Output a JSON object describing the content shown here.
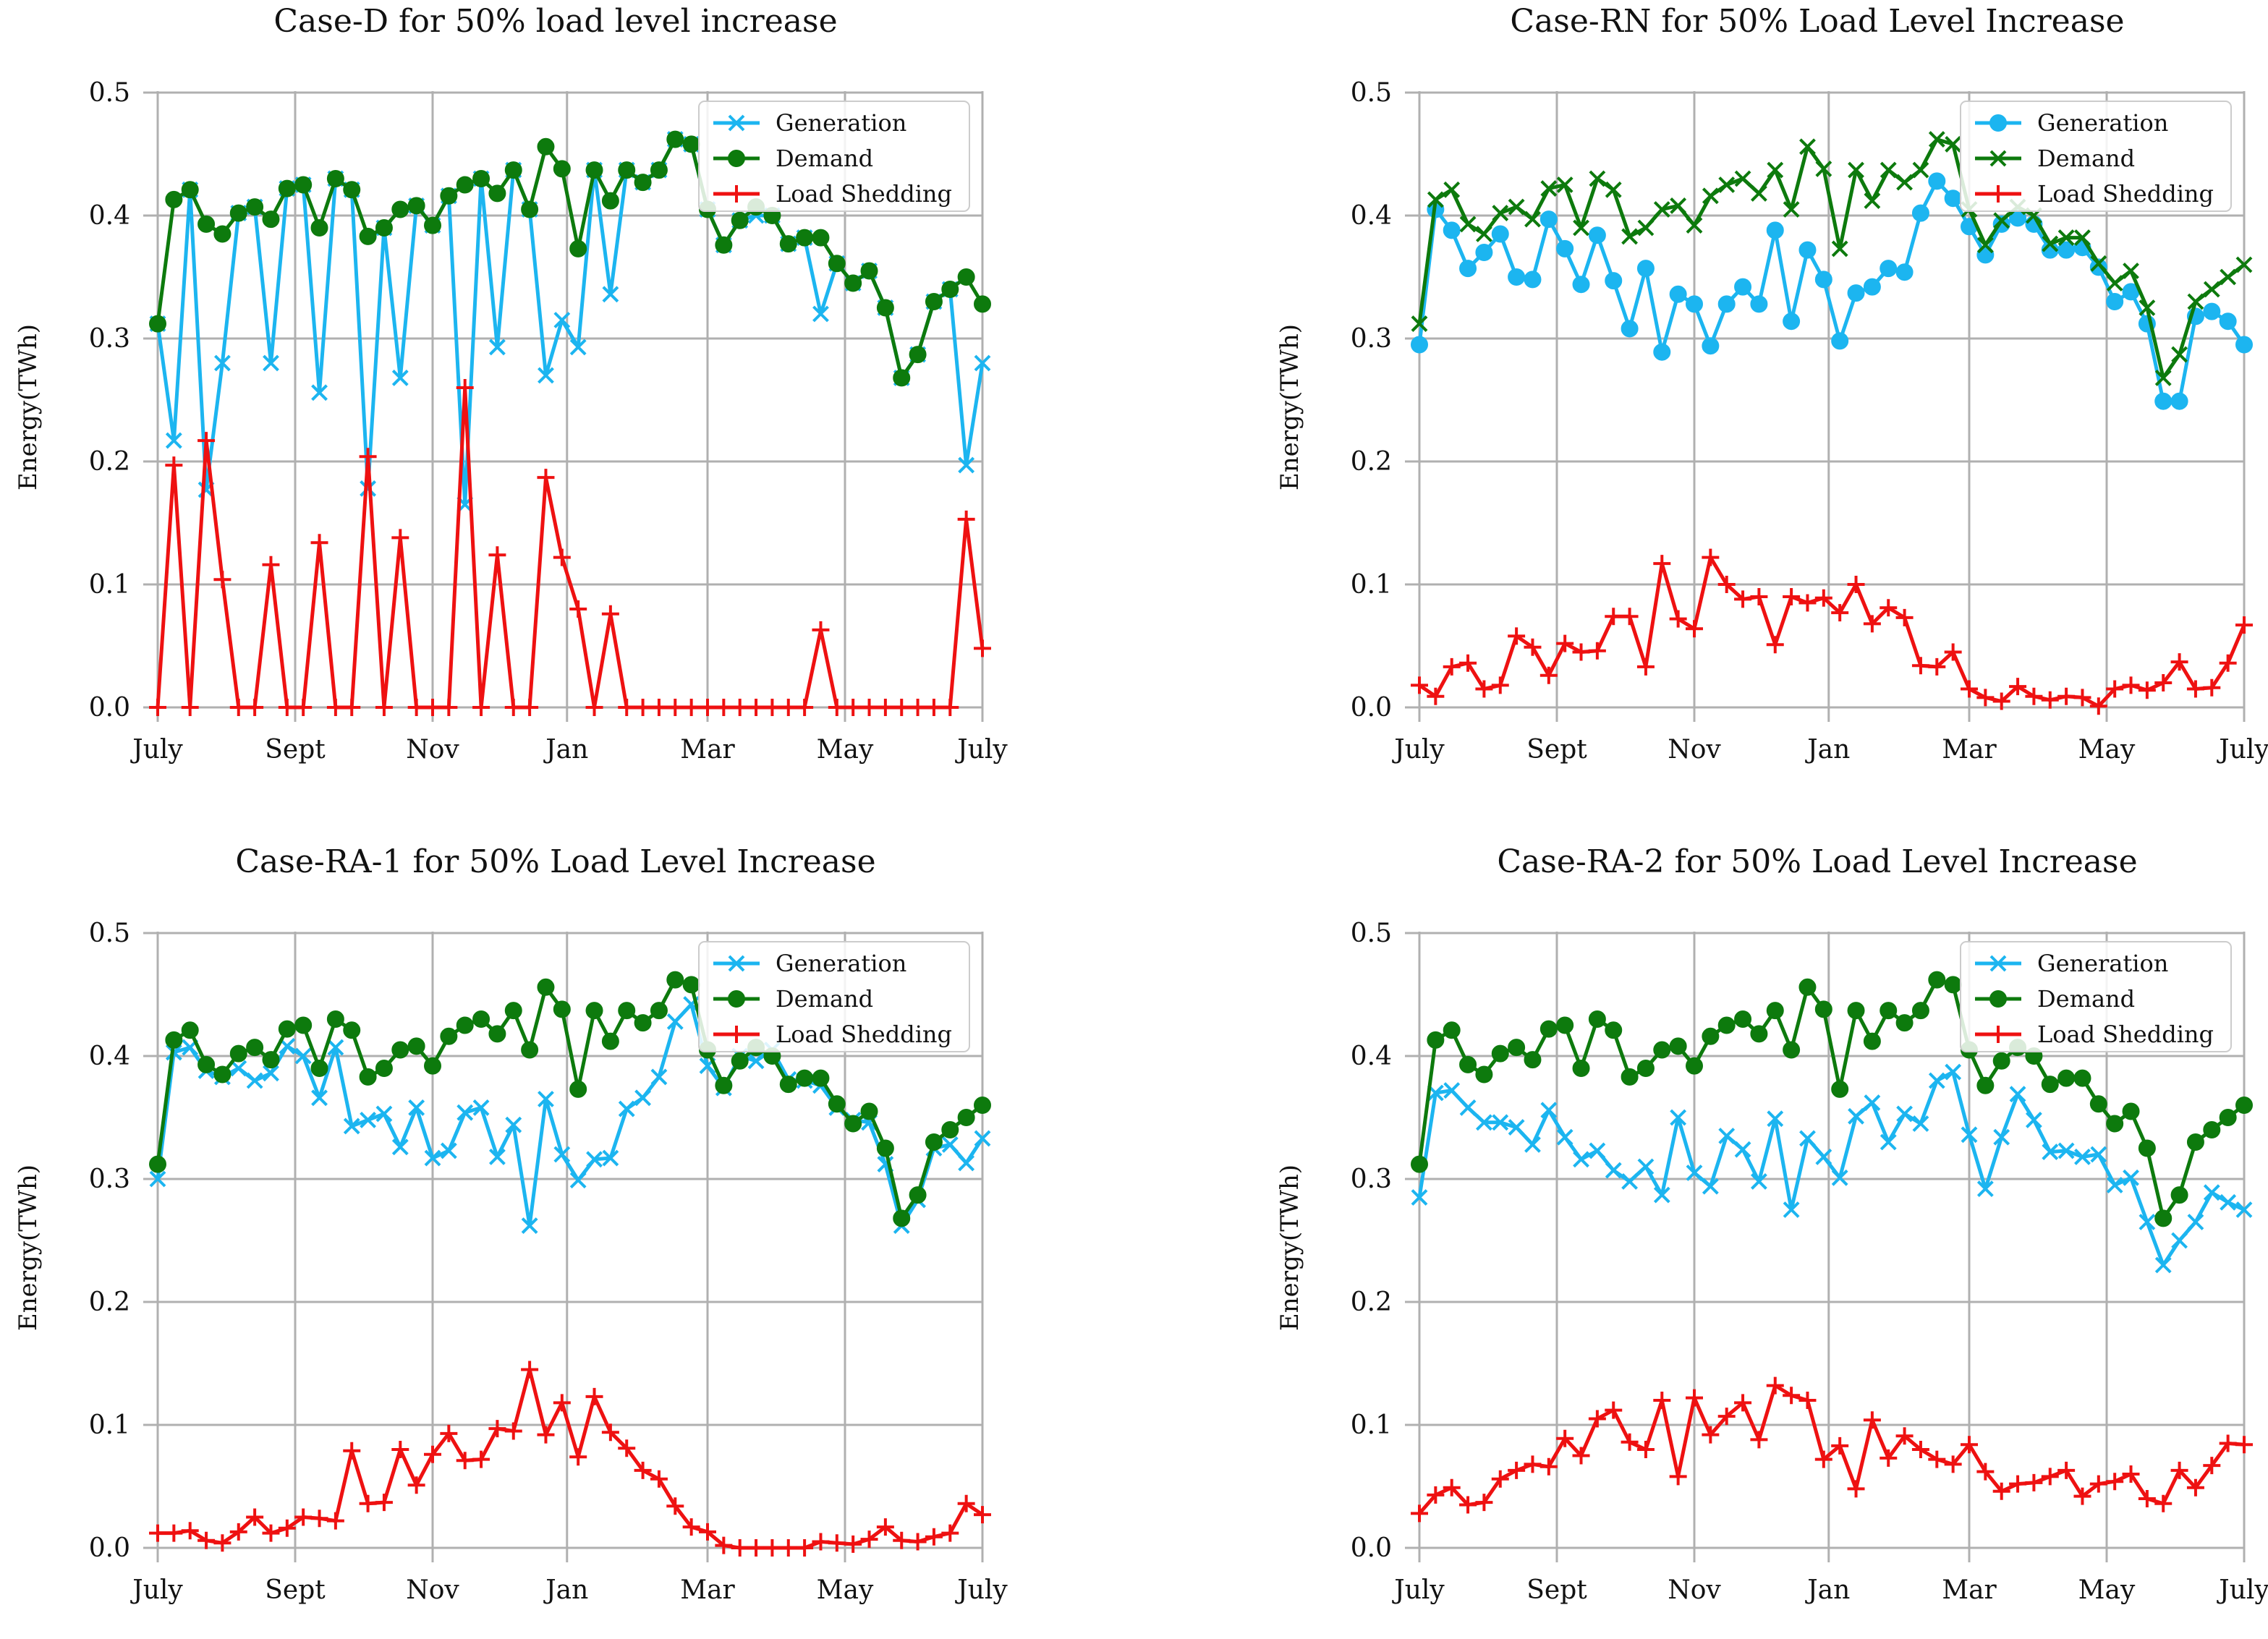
{
  "colors": {
    "generation": "#1cb5f0",
    "demand": "#0d7a0d",
    "shedding": "#ee1111",
    "grid": "#b0b0b0"
  },
  "chart_data": [
    {
      "type": "line",
      "title": "Case-D for 50% load level increase",
      "ylabel": "Energy(TWh)",
      "xlabel": "",
      "ylim": [
        0,
        0.5
      ],
      "yticks": [
        "0.0",
        "0.1",
        "0.2",
        "0.3",
        "0.4",
        "0.5"
      ],
      "xtick_labels": [
        "July",
        "Sept",
        "Nov",
        "Jan",
        "Mar",
        "May",
        "July"
      ],
      "x_range": [
        0,
        52
      ],
      "legend_position": "top-right",
      "series": [
        {
          "name": "Generation",
          "marker": "x",
          "color": "#1cb5f0",
          "values": [
            0.312,
            0.217,
            0.421,
            0.177,
            0.28,
            0.402,
            0.407,
            0.28,
            0.422,
            0.425,
            0.256,
            0.43,
            0.421,
            0.178,
            0.39,
            0.268,
            0.408,
            0.392,
            0.416,
            0.165,
            0.43,
            0.293,
            0.437,
            0.405,
            0.27,
            0.315,
            0.293,
            0.437,
            0.336,
            0.437,
            0.427,
            0.437,
            0.462,
            0.458,
            0.405,
            0.376,
            0.396,
            0.4,
            0.4,
            0.377,
            0.382,
            0.32,
            0.361,
            0.345,
            0.355,
            0.325,
            0.268,
            0.287,
            0.33,
            0.34,
            0.197,
            0.28
          ]
        },
        {
          "name": "Demand",
          "marker": "o",
          "color": "#0d7a0d",
          "values": [
            0.312,
            0.413,
            0.421,
            0.393,
            0.385,
            0.402,
            0.407,
            0.397,
            0.422,
            0.425,
            0.39,
            0.43,
            0.421,
            0.383,
            0.39,
            0.405,
            0.408,
            0.392,
            0.416,
            0.425,
            0.43,
            0.418,
            0.437,
            0.405,
            0.456,
            0.438,
            0.373,
            0.437,
            0.412,
            0.437,
            0.427,
            0.437,
            0.462,
            0.458,
            0.405,
            0.376,
            0.396,
            0.407,
            0.4,
            0.377,
            0.382,
            0.382,
            0.361,
            0.345,
            0.355,
            0.325,
            0.268,
            0.287,
            0.33,
            0.34,
            0.35,
            0.328
          ]
        },
        {
          "name": "Load Shedding",
          "marker": "+",
          "color": "#ee1111",
          "values": [
            0.0,
            0.197,
            0.0,
            0.217,
            0.104,
            0.0,
            0.0,
            0.116,
            0.0,
            0.0,
            0.134,
            0.0,
            0.0,
            0.204,
            0.0,
            0.138,
            0.0,
            0.0,
            0.0,
            0.26,
            0.0,
            0.124,
            0.0,
            0.0,
            0.187,
            0.122,
            0.08,
            0.0,
            0.076,
            0.0,
            0.0,
            0.0,
            0.0,
            0.0,
            0.0,
            0.0,
            0.0,
            0.0,
            0.0,
            0.0,
            0.0,
            0.063,
            0.0,
            0.0,
            0.0,
            0.0,
            0.0,
            0.0,
            0.0,
            0.0,
            0.153,
            0.048
          ]
        }
      ]
    },
    {
      "type": "line",
      "title": "Case-RN for 50% Load Level Increase",
      "ylabel": "Energy(TWh)",
      "xlabel": "",
      "ylim": [
        0,
        0.5
      ],
      "yticks": [
        "0.0",
        "0.1",
        "0.2",
        "0.3",
        "0.4",
        "0.5"
      ],
      "xtick_labels": [
        "July",
        "Sept",
        "Nov",
        "Jan",
        "Mar",
        "May",
        "July"
      ],
      "x_range": [
        0,
        52
      ],
      "legend_position": "top-right",
      "series": [
        {
          "name": "Generation",
          "marker": "o",
          "color": "#1cb5f0",
          "values": [
            0.295,
            0.405,
            0.388,
            0.357,
            0.37,
            0.385,
            0.35,
            0.348,
            0.397,
            0.373,
            0.344,
            0.384,
            0.347,
            0.308,
            0.357,
            0.289,
            0.336,
            0.328,
            0.294,
            0.328,
            0.342,
            0.328,
            0.388,
            0.314,
            0.372,
            0.348,
            0.298,
            0.337,
            0.342,
            0.357,
            0.354,
            0.402,
            0.428,
            0.414,
            0.391,
            0.368,
            0.393,
            0.398,
            0.393,
            0.372,
            0.372,
            0.374,
            0.358,
            0.33,
            0.338,
            0.312,
            0.249,
            0.249,
            0.318,
            0.322,
            0.314,
            0.295
          ]
        },
        {
          "name": "Demand",
          "marker": "x",
          "color": "#0d7a0d",
          "values": [
            0.312,
            0.413,
            0.421,
            0.393,
            0.385,
            0.402,
            0.407,
            0.397,
            0.422,
            0.425,
            0.39,
            0.43,
            0.421,
            0.383,
            0.39,
            0.405,
            0.408,
            0.392,
            0.416,
            0.425,
            0.43,
            0.418,
            0.437,
            0.405,
            0.456,
            0.438,
            0.373,
            0.437,
            0.412,
            0.437,
            0.427,
            0.437,
            0.462,
            0.458,
            0.405,
            0.376,
            0.396,
            0.407,
            0.4,
            0.377,
            0.382,
            0.382,
            0.361,
            0.345,
            0.355,
            0.325,
            0.268,
            0.287,
            0.33,
            0.34,
            0.35,
            0.36
          ]
        },
        {
          "name": "Load Shedding",
          "marker": "+",
          "color": "#ee1111",
          "values": [
            0.018,
            0.009,
            0.033,
            0.036,
            0.015,
            0.018,
            0.058,
            0.049,
            0.026,
            0.052,
            0.045,
            0.046,
            0.074,
            0.074,
            0.033,
            0.117,
            0.072,
            0.064,
            0.122,
            0.1,
            0.088,
            0.09,
            0.051,
            0.09,
            0.085,
            0.089,
            0.077,
            0.1,
            0.068,
            0.081,
            0.073,
            0.034,
            0.033,
            0.045,
            0.015,
            0.008,
            0.005,
            0.017,
            0.009,
            0.006,
            0.009,
            0.008,
            0.001,
            0.015,
            0.018,
            0.014,
            0.02,
            0.037,
            0.015,
            0.016,
            0.036,
            0.067
          ]
        }
      ]
    },
    {
      "type": "line",
      "title": "Case-RA-1 for 50% Load Level Increase",
      "ylabel": "Energy(TWh)",
      "xlabel": "",
      "ylim": [
        0,
        0.5
      ],
      "yticks": [
        "0.0",
        "0.1",
        "0.2",
        "0.3",
        "0.4",
        "0.5"
      ],
      "xtick_labels": [
        "July",
        "Sept",
        "Nov",
        "Jan",
        "Mar",
        "May",
        "July"
      ],
      "x_range": [
        0,
        52
      ],
      "legend_position": "top-right",
      "series": [
        {
          "name": "Generation",
          "marker": "x",
          "color": "#1cb5f0",
          "values": [
            0.3,
            0.403,
            0.407,
            0.388,
            0.383,
            0.39,
            0.38,
            0.386,
            0.408,
            0.4,
            0.366,
            0.407,
            0.343,
            0.348,
            0.353,
            0.326,
            0.358,
            0.317,
            0.323,
            0.354,
            0.358,
            0.318,
            0.344,
            0.262,
            0.365,
            0.32,
            0.299,
            0.316,
            0.317,
            0.357,
            0.366,
            0.383,
            0.428,
            0.442,
            0.392,
            0.374,
            0.4,
            0.396,
            0.405,
            0.381,
            0.38,
            0.376,
            0.358,
            0.348,
            0.346,
            0.312,
            0.262,
            0.283,
            0.325,
            0.328,
            0.313,
            0.333
          ]
        },
        {
          "name": "Demand",
          "marker": "o",
          "color": "#0d7a0d",
          "values": [
            0.312,
            0.413,
            0.421,
            0.393,
            0.385,
            0.402,
            0.407,
            0.397,
            0.422,
            0.425,
            0.39,
            0.43,
            0.421,
            0.383,
            0.39,
            0.405,
            0.408,
            0.392,
            0.416,
            0.425,
            0.43,
            0.418,
            0.437,
            0.405,
            0.456,
            0.438,
            0.373,
            0.437,
            0.412,
            0.437,
            0.427,
            0.437,
            0.462,
            0.458,
            0.405,
            0.376,
            0.396,
            0.407,
            0.4,
            0.377,
            0.382,
            0.382,
            0.361,
            0.345,
            0.355,
            0.325,
            0.268,
            0.287,
            0.33,
            0.34,
            0.35,
            0.36
          ]
        },
        {
          "name": "Load Shedding",
          "marker": "+",
          "color": "#ee1111",
          "values": [
            0.012,
            0.012,
            0.014,
            0.006,
            0.004,
            0.013,
            0.025,
            0.012,
            0.016,
            0.025,
            0.024,
            0.022,
            0.079,
            0.036,
            0.037,
            0.08,
            0.051,
            0.076,
            0.093,
            0.071,
            0.072,
            0.097,
            0.095,
            0.145,
            0.092,
            0.118,
            0.074,
            0.123,
            0.094,
            0.081,
            0.063,
            0.056,
            0.034,
            0.017,
            0.013,
            0.002,
            0.0,
            0.0,
            0.0,
            0.0,
            0.0,
            0.005,
            0.004,
            0.003,
            0.007,
            0.017,
            0.006,
            0.005,
            0.009,
            0.012,
            0.036,
            0.027
          ]
        }
      ]
    },
    {
      "type": "line",
      "title": "Case-RA-2 for 50% Load Level Increase",
      "ylabel": "Energy(TWh)",
      "xlabel": "",
      "ylim": [
        0,
        0.5
      ],
      "yticks": [
        "0.0",
        "0.1",
        "0.2",
        "0.3",
        "0.4",
        "0.5"
      ],
      "xtick_labels": [
        "July",
        "Sept",
        "Nov",
        "Jan",
        "Mar",
        "May",
        "July"
      ],
      "x_range": [
        0,
        52
      ],
      "legend_position": "top-right",
      "series": [
        {
          "name": "Generation",
          "marker": "x",
          "color": "#1cb5f0",
          "values": [
            0.285,
            0.37,
            0.372,
            0.358,
            0.346,
            0.346,
            0.342,
            0.328,
            0.356,
            0.334,
            0.316,
            0.323,
            0.307,
            0.298,
            0.31,
            0.287,
            0.35,
            0.305,
            0.294,
            0.335,
            0.324,
            0.298,
            0.349,
            0.275,
            0.333,
            0.318,
            0.301,
            0.351,
            0.362,
            0.33,
            0.353,
            0.345,
            0.38,
            0.387,
            0.336,
            0.292,
            0.334,
            0.369,
            0.348,
            0.322,
            0.323,
            0.318,
            0.32,
            0.295,
            0.301,
            0.265,
            0.23,
            0.25,
            0.265,
            0.289,
            0.281,
            0.275
          ]
        },
        {
          "name": "Demand",
          "marker": "o",
          "color": "#0d7a0d",
          "values": [
            0.312,
            0.413,
            0.421,
            0.393,
            0.385,
            0.402,
            0.407,
            0.397,
            0.422,
            0.425,
            0.39,
            0.43,
            0.421,
            0.383,
            0.39,
            0.405,
            0.408,
            0.392,
            0.416,
            0.425,
            0.43,
            0.418,
            0.437,
            0.405,
            0.456,
            0.438,
            0.373,
            0.437,
            0.412,
            0.437,
            0.427,
            0.437,
            0.462,
            0.458,
            0.405,
            0.376,
            0.396,
            0.407,
            0.4,
            0.377,
            0.382,
            0.382,
            0.361,
            0.345,
            0.355,
            0.325,
            0.268,
            0.287,
            0.33,
            0.34,
            0.35,
            0.36
          ]
        },
        {
          "name": "Load Shedding",
          "marker": "+",
          "color": "#ee1111",
          "values": [
            0.028,
            0.043,
            0.049,
            0.035,
            0.037,
            0.056,
            0.063,
            0.068,
            0.066,
            0.089,
            0.075,
            0.105,
            0.112,
            0.086,
            0.08,
            0.12,
            0.058,
            0.122,
            0.092,
            0.107,
            0.118,
            0.088,
            0.132,
            0.124,
            0.12,
            0.072,
            0.083,
            0.048,
            0.104,
            0.073,
            0.091,
            0.08,
            0.072,
            0.068,
            0.084,
            0.062,
            0.046,
            0.052,
            0.053,
            0.058,
            0.063,
            0.042,
            0.052,
            0.054,
            0.06,
            0.04,
            0.036,
            0.063,
            0.049,
            0.067,
            0.085,
            0.084
          ]
        }
      ]
    }
  ]
}
